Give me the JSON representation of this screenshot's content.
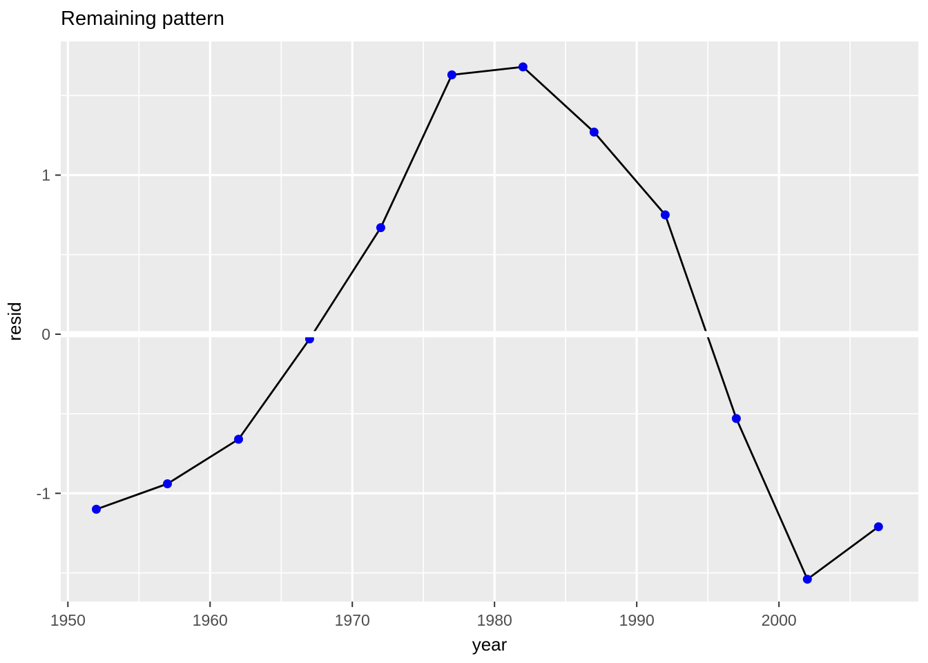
{
  "chart": {
    "title": "Remaining pattern"
  },
  "chart_data": {
    "type": "line",
    "title": "Remaining pattern",
    "xlabel": "year",
    "ylabel": "resid",
    "series": [
      {
        "name": "resid",
        "x": [
          1952,
          1957,
          1962,
          1967,
          1972,
          1977,
          1982,
          1987,
          1992,
          1997,
          2002,
          2007
        ],
        "y": [
          -1.1,
          -0.94,
          -0.66,
          -0.03,
          0.67,
          1.63,
          1.68,
          1.27,
          0.75,
          -0.53,
          -1.54,
          -1.21
        ]
      }
    ],
    "xlim": [
      1949.5,
      2009.8
    ],
    "ylim": [
      -1.68,
      1.84
    ],
    "x_major_ticks": [
      1950,
      1960,
      1970,
      1980,
      1990,
      2000
    ],
    "x_minor_ticks": [
      1955,
      1965,
      1975,
      1985,
      1995,
      2005
    ],
    "y_major_ticks": [
      -1,
      0,
      1
    ],
    "y_minor_ticks": [
      -1.5,
      -0.5,
      0.5,
      1.5
    ],
    "reference_line": {
      "y": 0,
      "color": "#FFFFFF",
      "stroke_width": 9
    },
    "grid": true,
    "legend_position": "none",
    "colors": {
      "panel_background": "#EBEBEB",
      "gridline": "#FFFFFF",
      "data_line": "#000000",
      "data_point": "#0000EE",
      "tick_mark": "#333333",
      "tick_label": "#4D4D4D",
      "axis_title": "#000000",
      "title": "#000000"
    }
  }
}
